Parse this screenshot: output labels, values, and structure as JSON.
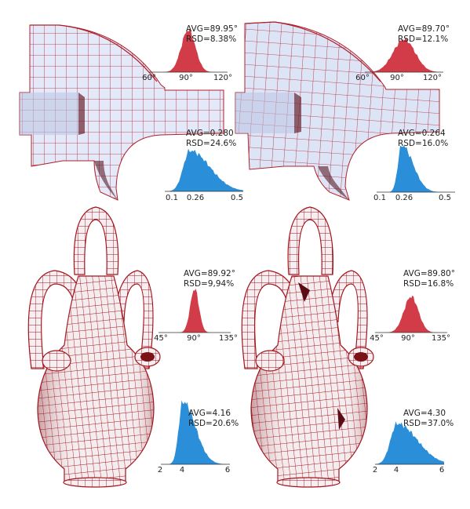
{
  "colors": {
    "mesh_fill": "#dfe6f7",
    "mesh_fill_dark": "#b9c3e3",
    "mesh_line": "#b0202a",
    "angle_hist": "#d23b48",
    "edge_hist": "#2a8fd8",
    "vase_fill": "#f4eef0",
    "vase_line": "#a3131c"
  },
  "panels": [
    {
      "id": "top-left",
      "angle": {
        "avg": "AVG=89.95°",
        "rsd": "RSD=8.38%",
        "ticks": [
          "60°",
          "90°",
          "120°"
        ],
        "sharpness": 0.09
      },
      "edge": {
        "avg": "AVG=0.280",
        "rsd": "RSD=24.6%",
        "ticks": [
          "0.1",
          "0.26",
          "0.5"
        ],
        "sharpness": 0.14
      }
    },
    {
      "id": "top-right",
      "angle": {
        "avg": "AVG=89.70°",
        "rsd": "RSD=12.1%",
        "ticks": [
          "60°",
          "90°",
          "120°"
        ],
        "sharpness": 0.14
      },
      "edge": {
        "avg": "AVG=0.264",
        "rsd": "RSD=16.0%",
        "ticks": [
          "0.1",
          "0.26",
          "0.5"
        ],
        "sharpness": 0.08
      }
    },
    {
      "id": "bottom-left",
      "angle": {
        "avg": "AVG=89.92°",
        "rsd": "RSD=9,94%",
        "ticks": [
          "45°",
          "90°",
          "135°"
        ],
        "sharpness": 0.06
      },
      "edge": {
        "avg": "AVG=4.16",
        "rsd": "RSD=20.6%",
        "ticks": [
          "2",
          "4",
          "6"
        ],
        "sharpness": 0.1
      }
    },
    {
      "id": "bottom-right",
      "angle": {
        "avg": "AVG=89.80°",
        "rsd": "RSD=16.8%",
        "ticks": [
          "45°",
          "90°",
          "135°"
        ],
        "sharpness": 0.1
      },
      "edge": {
        "avg": "AVG=4.30",
        "rsd": "RSD=37.0%",
        "ticks": [
          "2",
          "4",
          "6"
        ],
        "sharpness": 0.16
      }
    }
  ]
}
